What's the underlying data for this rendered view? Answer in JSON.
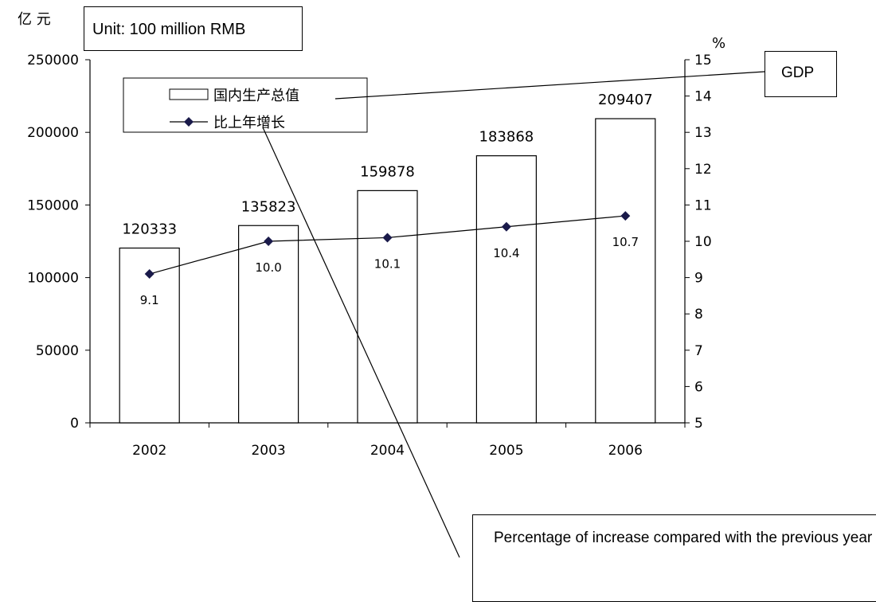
{
  "unit_cn": "亿 元",
  "pct_symbol": "%",
  "annotations": {
    "unit": "Unit: 100 million RMB",
    "gdp": "GDP",
    "pct_increase": "Percentage of increase compared with the previous year"
  },
  "chart_data": {
    "type": "bar",
    "categories": [
      "2002",
      "2003",
      "2004",
      "2005",
      "2006"
    ],
    "series": [
      {
        "name": "国内生产总值",
        "kind": "bar",
        "axis": "left",
        "values": [
          120333,
          135823,
          159878,
          183868,
          209407
        ],
        "labels": [
          "120333",
          "135823",
          "159878",
          "183868",
          "209407"
        ]
      },
      {
        "name": "比上年增长",
        "kind": "line",
        "axis": "right",
        "values": [
          9.1,
          10.0,
          10.1,
          10.4,
          10.7
        ],
        "labels": [
          "9.1",
          "10.0",
          "10.1",
          "10.4",
          "10.7"
        ]
      }
    ],
    "y_left": {
      "min": 0,
      "max": 250000,
      "ticks": [
        "0",
        "50000",
        "100000",
        "150000",
        "200000",
        "250000"
      ]
    },
    "y_right": {
      "min": 5,
      "max": 15,
      "ticks": [
        "5",
        "6",
        "7",
        "8",
        "9",
        "10",
        "11",
        "12",
        "13",
        "14",
        "15"
      ]
    },
    "legend": [
      "国内生产总值",
      "比上年增长"
    ],
    "legend_position": "top-left",
    "grid": false
  }
}
